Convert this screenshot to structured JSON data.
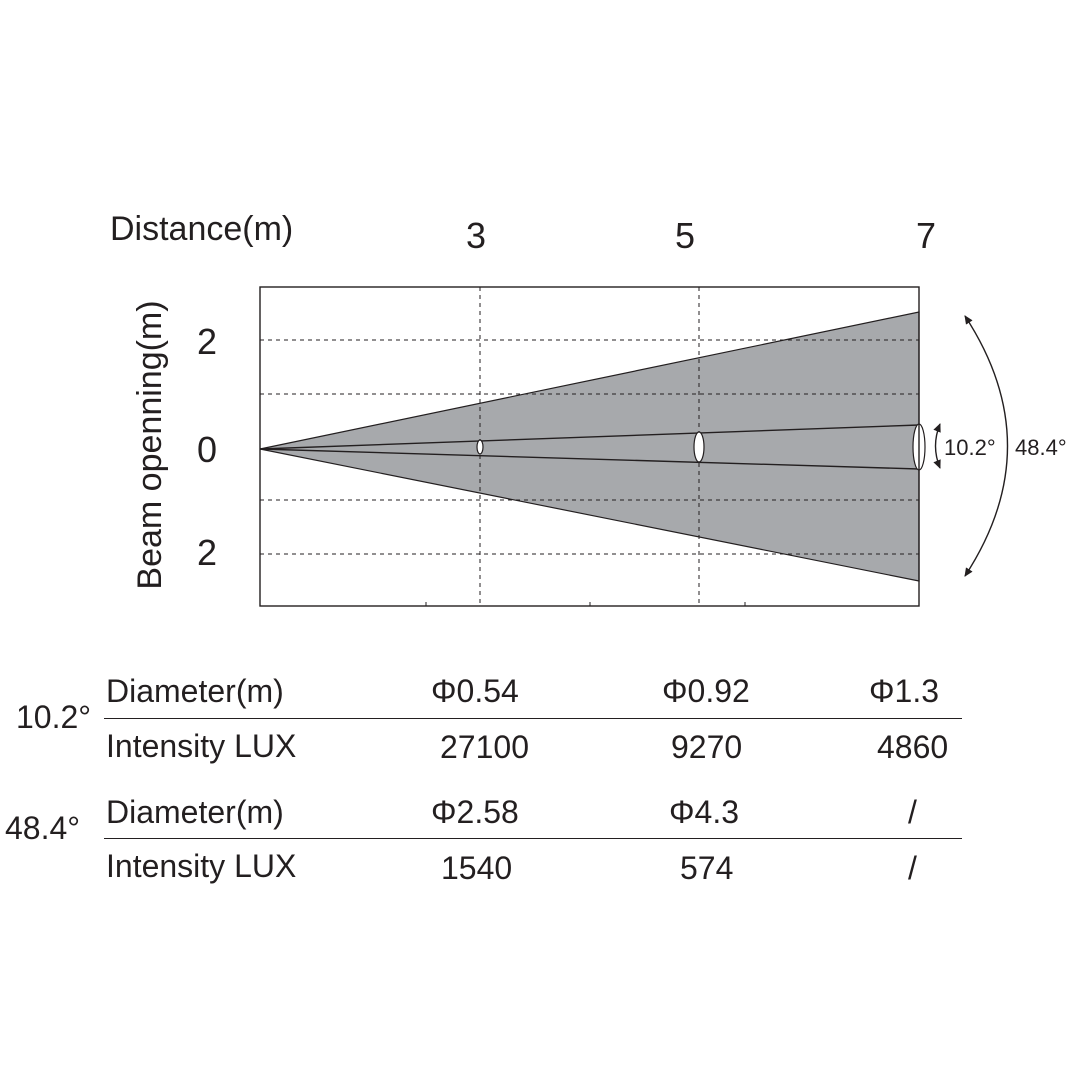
{
  "x_axis": {
    "label": "Distance(m)",
    "ticks": [
      "3",
      "5",
      "7"
    ]
  },
  "y_axis": {
    "label": "Beam openning(m)",
    "ticks": [
      "2",
      "0",
      "2"
    ]
  },
  "angles": {
    "narrow": "10.2°",
    "wide": "48.4°"
  },
  "table": {
    "narrow": {
      "angle": "10.2°",
      "diameter_label": "Diameter(m)",
      "diameters": [
        "Φ0.54",
        "Φ0.92",
        "Φ1.3"
      ],
      "intensity_label": "Intensity LUX",
      "intensities": [
        "27100",
        "9270",
        "4860"
      ]
    },
    "wide": {
      "angle": "48.4°",
      "diameter_label": "Diameter(m)",
      "diameters": [
        "Φ2.58",
        "Φ4.3",
        "/"
      ],
      "intensity_label": "Intensity LUX",
      "intensities": [
        "1540",
        "574",
        "/"
      ]
    }
  },
  "colors": {
    "beam_fill": "#a7a9ac",
    "line": "#231f20"
  }
}
